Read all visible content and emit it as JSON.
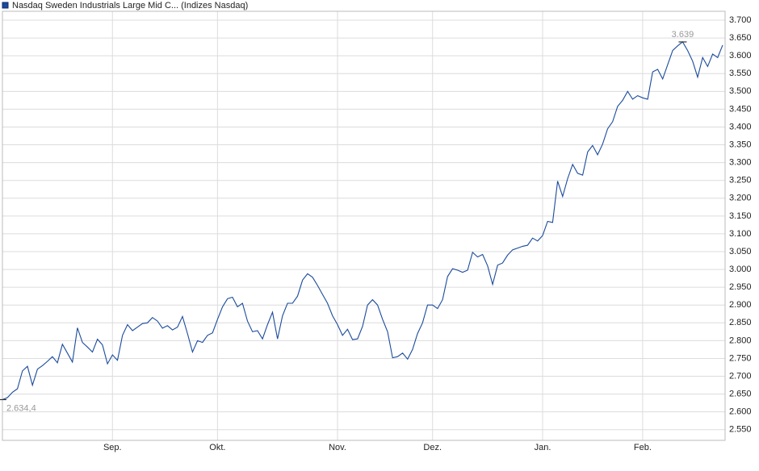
{
  "chart_data": {
    "type": "line",
    "series": [
      {
        "name": "Nasdaq Sweden Industrials Large Mid C... (Indizes Nasdaq)",
        "color": "#1a4b9c",
        "values": [
          2634.4,
          2640,
          2655,
          2665,
          2715,
          2728,
          2675,
          2720,
          2730,
          2742,
          2755,
          2738,
          2790,
          2765,
          2740,
          2836,
          2795,
          2782,
          2768,
          2804,
          2788,
          2735,
          2760,
          2745,
          2815,
          2845,
          2828,
          2838,
          2848,
          2850,
          2865,
          2855,
          2835,
          2842,
          2830,
          2838,
          2868,
          2820,
          2768,
          2800,
          2795,
          2815,
          2822,
          2860,
          2895,
          2918,
          2922,
          2895,
          2905,
          2855,
          2825,
          2828,
          2805,
          2845,
          2880,
          2805,
          2870,
          2905,
          2905,
          2925,
          2970,
          2988,
          2978,
          2955,
          2930,
          2905,
          2870,
          2845,
          2815,
          2832,
          2803,
          2805,
          2840,
          2900,
          2915,
          2900,
          2860,
          2825,
          2752,
          2755,
          2765,
          2748,
          2775,
          2820,
          2850,
          2900,
          2900,
          2890,
          2915,
          2980,
          3002,
          2998,
          2992,
          2998,
          3048,
          3035,
          3042,
          3010,
          2958,
          3012,
          3018,
          3040,
          3055,
          3060,
          3065,
          3068,
          3088,
          3080,
          3095,
          3135,
          3132,
          3248,
          3205,
          3255,
          3295,
          3270,
          3265,
          3330,
          3348,
          3322,
          3352,
          3395,
          3415,
          3458,
          3475,
          3500,
          3478,
          3488,
          3482,
          3478,
          3555,
          3562,
          3535,
          3575,
          3615,
          3628,
          3639,
          3615,
          3585,
          3540,
          3595,
          3570,
          3605,
          3595,
          3630
        ],
        "value_labels": [
          "2.634,4",
          null,
          null,
          null,
          null,
          null,
          null,
          null,
          null,
          null,
          null,
          null,
          null,
          null,
          null,
          null,
          null,
          null,
          null,
          null,
          null,
          null,
          null,
          null,
          null,
          null,
          null,
          null,
          null,
          null,
          null,
          null,
          null,
          null,
          null,
          null,
          null,
          null,
          null,
          null,
          null,
          null,
          null,
          null,
          null,
          null,
          null,
          null,
          null,
          null,
          null,
          null,
          null,
          null,
          null,
          null,
          null,
          null,
          null,
          null,
          null,
          null,
          null,
          null,
          null,
          null,
          null,
          null,
          null,
          null,
          null,
          null,
          null,
          null,
          null,
          null,
          null,
          null,
          null,
          null,
          null,
          null,
          null,
          null,
          null,
          null,
          null,
          null,
          null,
          null,
          null,
          null,
          null,
          null,
          null,
          null,
          null,
          null,
          null,
          null,
          null,
          null,
          null,
          null,
          null,
          null,
          null,
          null,
          null,
          null,
          null,
          null,
          null,
          null,
          null,
          null,
          null,
          null,
          null,
          null,
          null,
          null,
          null,
          null,
          null,
          null,
          null,
          null,
          null,
          null,
          null,
          null,
          null,
          null,
          null,
          null,
          "3.639",
          null,
          null,
          null,
          null,
          null,
          null,
          null,
          null
        ]
      }
    ],
    "categories": [
      null,
      null,
      null,
      null,
      null,
      null,
      null,
      null,
      null,
      null,
      null,
      null,
      null,
      null,
      null,
      null,
      null,
      null,
      null,
      null,
      null,
      null,
      "Sep.",
      null,
      null,
      null,
      null,
      null,
      null,
      null,
      null,
      null,
      null,
      null,
      null,
      null,
      null,
      null,
      null,
      null,
      null,
      null,
      null,
      "Okt.",
      null,
      null,
      null,
      null,
      null,
      null,
      null,
      null,
      null,
      null,
      null,
      null,
      null,
      null,
      null,
      null,
      null,
      null,
      null,
      null,
      null,
      null,
      null,
      "Nov.",
      null,
      null,
      null,
      null,
      null,
      null,
      null,
      null,
      null,
      null,
      null,
      null,
      null,
      null,
      null,
      null,
      null,
      null,
      "Dez.",
      null,
      null,
      null,
      null,
      null,
      null,
      null,
      null,
      null,
      null,
      null,
      null,
      null,
      null,
      null,
      null,
      null,
      null,
      null,
      null,
      null,
      "Jan.",
      null,
      null,
      null,
      null,
      null,
      null,
      null,
      null,
      null,
      null,
      null,
      null,
      null,
      null,
      null,
      null,
      null,
      null,
      null,
      "Feb.",
      null,
      null,
      null,
      null,
      null,
      null,
      null,
      null,
      null,
      null,
      null,
      null,
      null,
      null,
      null,
      null
    ],
    "ylim": [
      2520,
      3725
    ],
    "yticks": [
      {
        "value": 2550,
        "label": "2.550"
      },
      {
        "value": 2600,
        "label": "2.600"
      },
      {
        "value": 2650,
        "label": "2.650"
      },
      {
        "value": 2700,
        "label": "2.700"
      },
      {
        "value": 2750,
        "label": "2.750"
      },
      {
        "value": 2800,
        "label": "2.800"
      },
      {
        "value": 2850,
        "label": "2.850"
      },
      {
        "value": 2900,
        "label": "2.900"
      },
      {
        "value": 2950,
        "label": "2.950"
      },
      {
        "value": 3000,
        "label": "3.000"
      },
      {
        "value": 3050,
        "label": "3.050"
      },
      {
        "value": 3100,
        "label": "3.100"
      },
      {
        "value": 3150,
        "label": "3.150"
      },
      {
        "value": 3200,
        "label": "3.200"
      },
      {
        "value": 3250,
        "label": "3.250"
      },
      {
        "value": 3300,
        "label": "3.300"
      },
      {
        "value": 3350,
        "label": "3.350"
      },
      {
        "value": 3400,
        "label": "3.400"
      },
      {
        "value": 3450,
        "label": "3.450"
      },
      {
        "value": 3500,
        "label": "3.500"
      },
      {
        "value": 3550,
        "label": "3.550"
      },
      {
        "value": 3600,
        "label": "3.600"
      },
      {
        "value": 3650,
        "label": "3.650"
      },
      {
        "value": 3700,
        "label": "3.700"
      }
    ],
    "grid": true
  }
}
